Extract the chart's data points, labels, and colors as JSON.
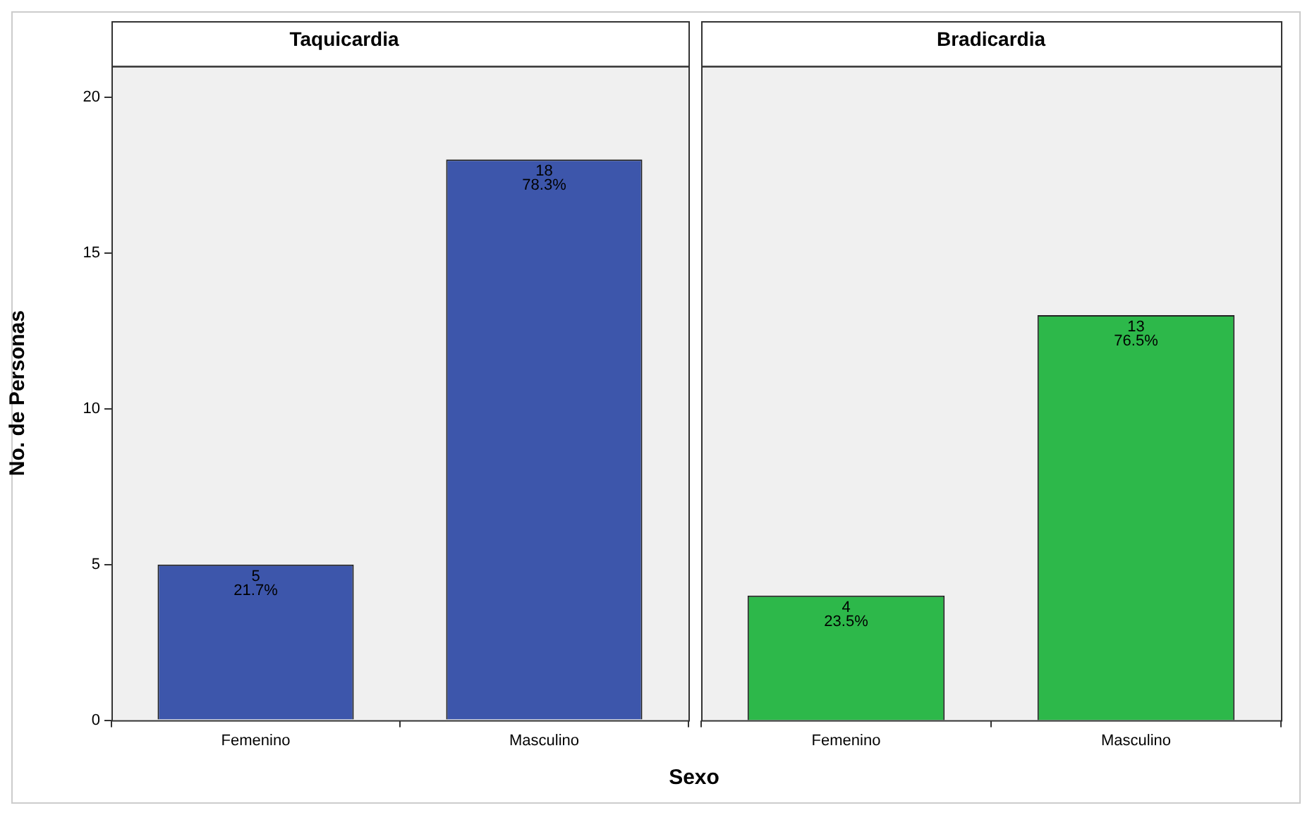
{
  "chart_data": [
    {
      "type": "bar",
      "title": "Taquicardia",
      "ylabel": "No. de Personas",
      "xlabel": "Sexo",
      "categories": [
        "Femenino",
        "Masculino"
      ],
      "values": [
        5,
        18
      ],
      "color": "#3d56ab",
      "value_labels": [
        "5\n21.7%",
        "18\n78.3%"
      ],
      "ylim": [
        0,
        21
      ],
      "yticks": [
        0,
        5,
        10,
        15,
        20
      ],
      "grid": false,
      "legend": false
    },
    {
      "type": "bar",
      "title": "Bradicardia",
      "categories": [
        "Femenino",
        "Masculino"
      ],
      "values": [
        4,
        13
      ],
      "color": "#2db84a",
      "value_labels": [
        "4\n23.5%",
        "13\n76.5%"
      ],
      "ylim": [
        0,
        21
      ],
      "yticks": [
        0,
        5,
        10,
        15,
        20
      ],
      "grid": false,
      "legend": false,
      "tick_labels": "x"
    }
  ]
}
